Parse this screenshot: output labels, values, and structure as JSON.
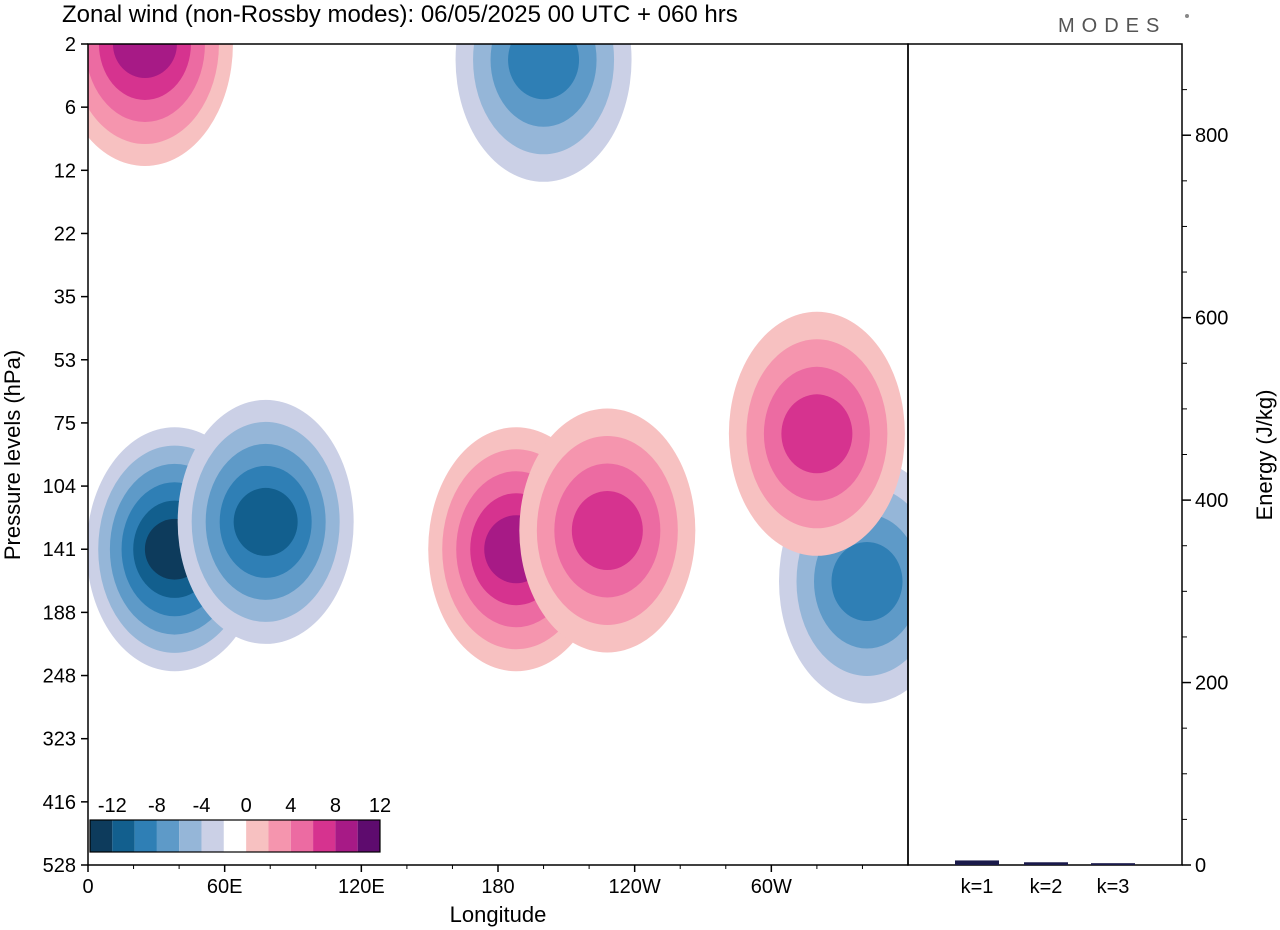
{
  "title": "Zonal wind (non-Rossby modes):  06/05/2025  00 UTC  + 060 hrs",
  "brand": "MODES",
  "chart_data": [
    {
      "type": "heatmap",
      "title": "Zonal wind (non-Rossby modes):  06/05/2025  00 UTC  + 060 hrs",
      "xlabel": "Longitude",
      "ylabel": "Pressure levels (hPa)",
      "x_ticks": [
        "0",
        "60E",
        "120E",
        "180",
        "120W",
        "60W"
      ],
      "x_tick_values": [
        0,
        60,
        120,
        180,
        240,
        300
      ],
      "xlim": [
        0,
        360
      ],
      "y_ticks": [
        "2",
        "6",
        "12",
        "22",
        "35",
        "53",
        "75",
        "104",
        "141",
        "188",
        "248",
        "323",
        "416",
        "528"
      ],
      "y_scale": "pressure levels, top 2 hPa to bottom 528 hPa",
      "colorbar": {
        "labels": [
          "-12",
          "-8",
          "-4",
          "0",
          "4",
          "8",
          "12"
        ],
        "colors": [
          "#0d3b5c",
          "#125f8e",
          "#2f7fb5",
          "#5e9ac8",
          "#95b6d8",
          "#cbd0e6",
          "#ffffff",
          "#f7c1c1",
          "#f595ae",
          "#ec6ba2",
          "#d6338f",
          "#a71a86",
          "#5e0b6e"
        ]
      },
      "features": [
        {
          "name": "negative jet core",
          "lon": 38,
          "plev": 141,
          "value": -12
        },
        {
          "name": "negative region",
          "lon": 78,
          "plev": 125,
          "value": -10
        },
        {
          "name": "positive core",
          "lon": 188,
          "plev": 141,
          "value": 10
        },
        {
          "name": "positive region",
          "lon": 228,
          "plev": 130,
          "value": 8
        },
        {
          "name": "negative region",
          "lon": 342,
          "plev": 165,
          "value": -8
        },
        {
          "name": "positive band",
          "lon": 320,
          "plev": 80,
          "value": 8
        },
        {
          "name": "positive upper",
          "lon": 25,
          "plev": 2,
          "value": 10
        },
        {
          "name": "negative upper",
          "lon": 200,
          "plev": 3,
          "value": -8
        }
      ]
    },
    {
      "type": "bar",
      "categories": [
        "k=1",
        "k=2",
        "k=3"
      ],
      "values": [
        5,
        3,
        2
      ],
      "ylabel": "Energy (J/kg)",
      "ylim": [
        0,
        900
      ],
      "y_ticks": [
        "0",
        "200",
        "400",
        "600",
        "800"
      ],
      "bar_color": "#1a1a4a"
    }
  ]
}
